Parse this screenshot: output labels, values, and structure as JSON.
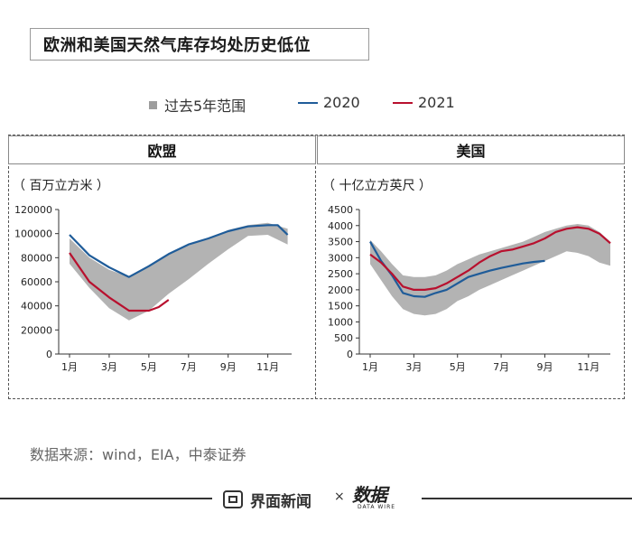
{
  "header": {
    "title": "欧洲和美国天然气库存均处历史低位"
  },
  "legend": {
    "range_label": "过去5年范围",
    "s2020_label": "2020",
    "s2021_label": "2021"
  },
  "colors": {
    "range": "#b3b3b3",
    "s2020": "#1f5c99",
    "s2021": "#b8102e"
  },
  "source": "数据来源：wind，EIA，中泰证券",
  "footer": {
    "brand": "界面新闻",
    "times": "×",
    "logo": "数据",
    "logo_sub": "DATA WIRE"
  },
  "chart_data": [
    {
      "type": "area",
      "title": "欧盟",
      "unit_label": "（ 百万立方米 ）",
      "xticks": [
        "1月",
        "3月",
        "5月",
        "7月",
        "9月",
        "11月"
      ],
      "xlim": [
        1,
        12.2
      ],
      "yticks": [
        "0",
        "20000",
        "40000",
        "60000",
        "80000",
        "100000",
        "120000"
      ],
      "ylim": [
        0,
        120000
      ],
      "range": {
        "name": "过去5年范围",
        "x": [
          1,
          2,
          3,
          4,
          5,
          6,
          7,
          8,
          9,
          10,
          11,
          12
        ],
        "upper": [
          96000,
          80000,
          70000,
          64000,
          73000,
          83000,
          90000,
          96000,
          103000,
          107000,
          109000,
          104000
        ],
        "lower": [
          75000,
          55000,
          38000,
          28000,
          36000,
          50000,
          62000,
          75000,
          87000,
          98000,
          99000,
          91000
        ]
      },
      "series": [
        {
          "name": "2020",
          "x": [
            1,
            2,
            3,
            4,
            5,
            6,
            7,
            8,
            9,
            10,
            11,
            11.5,
            12
          ],
          "values": [
            99000,
            82000,
            72000,
            64000,
            73000,
            83000,
            91000,
            96000,
            102000,
            106000,
            107000,
            107000,
            99000
          ]
        },
        {
          "name": "2021",
          "x": [
            1,
            2,
            3,
            4,
            4.5,
            5,
            5.5,
            6
          ],
          "values": [
            84000,
            60000,
            47000,
            36000,
            36000,
            36000,
            39000,
            45000
          ]
        }
      ]
    },
    {
      "type": "area",
      "title": "美国",
      "unit_label": "（ 十亿立方英尺 ）",
      "xticks": [
        "1月",
        "3月",
        "5月",
        "7月",
        "9月",
        "11月"
      ],
      "xlim": [
        1,
        12
      ],
      "yticks": [
        "0",
        "500",
        "1000",
        "1500",
        "2000",
        "2500",
        "3000",
        "3500",
        "4000",
        "4500"
      ],
      "ylim": [
        0,
        4500
      ],
      "range": {
        "name": "过去5年范围",
        "x": [
          1,
          1.5,
          2,
          2.5,
          3,
          3.5,
          4,
          4.5,
          5,
          5.5,
          6,
          6.5,
          7,
          7.5,
          8,
          8.5,
          9,
          9.5,
          10,
          10.5,
          11,
          11.5,
          12
        ],
        "upper": [
          3550,
          3200,
          2800,
          2450,
          2400,
          2400,
          2450,
          2600,
          2800,
          2950,
          3100,
          3200,
          3300,
          3400,
          3500,
          3650,
          3800,
          3900,
          4000,
          4050,
          4000,
          3800,
          3500
        ],
        "lower": [
          2800,
          2300,
          1800,
          1400,
          1250,
          1200,
          1250,
          1400,
          1650,
          1800,
          2000,
          2150,
          2300,
          2450,
          2600,
          2750,
          2900,
          3050,
          3200,
          3150,
          3050,
          2850,
          2750
        ]
      },
      "series": [
        {
          "name": "2020",
          "x": [
            1,
            1.5,
            2,
            2.5,
            3,
            3.5,
            4,
            4.5,
            5,
            5.5,
            6,
            6.5,
            7,
            7.5,
            8,
            8.5,
            9
          ],
          "values": [
            3500,
            2900,
            2450,
            1900,
            1800,
            1780,
            1900,
            2000,
            2200,
            2400,
            2500,
            2600,
            2680,
            2750,
            2820,
            2870,
            2900
          ]
        },
        {
          "name": "2021",
          "x": [
            1,
            1.5,
            2,
            2.5,
            3,
            3.5,
            4,
            4.5,
            5,
            5.5,
            6,
            6.5,
            7,
            7.5,
            8,
            8.5,
            9,
            9.5,
            10,
            10.5,
            11,
            11.5,
            12
          ],
          "values": [
            3100,
            2850,
            2500,
            2100,
            2000,
            2000,
            2050,
            2200,
            2400,
            2600,
            2850,
            3050,
            3200,
            3250,
            3350,
            3450,
            3600,
            3800,
            3900,
            3950,
            3900,
            3750,
            3450
          ]
        }
      ]
    }
  ]
}
